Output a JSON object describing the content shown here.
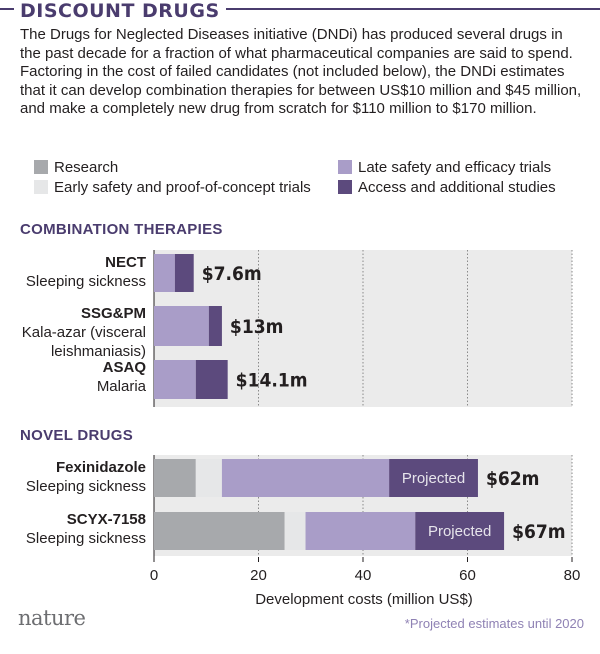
{
  "header": {
    "title": "DISCOUNT DRUGS",
    "intro": "The Drugs for Neglected Diseases initiative (DNDi) has produced several drugs in the past decade for a fraction of what pharmaceutical companies are said to spend. Factoring in the cost of failed candidates (not included below), the DNDi estimates that it can develop combination therapies for between US$10 million and $45 million, and make a completely new drug from scratch for $110 million to $170 million."
  },
  "legend": [
    {
      "label": "Research",
      "color": "#a7a9ac"
    },
    {
      "label": "Early safety and proof-of-concept trials",
      "color": "#e6e7e8"
    },
    {
      "label": "Late safety and efficacy trials",
      "color": "#a99dc8"
    },
    {
      "label": "Access and additional studies",
      "color": "#5c4a7d"
    }
  ],
  "chart_data": {
    "type": "bar",
    "orientation": "horizontal",
    "stacked": true,
    "xlabel": "Development costs (million US$)",
    "xlim": [
      0,
      80
    ],
    "xticks": [
      0,
      20,
      40,
      60,
      80
    ],
    "grid": true,
    "series_names": [
      "Research",
      "Early safety and proof-of-concept trials",
      "Late safety and efficacy trials",
      "Access and additional studies"
    ],
    "sections": [
      {
        "title": "COMBINATION THERAPIES",
        "bars": [
          {
            "name": "NECT",
            "sub": "Sleeping sickness",
            "values": [
              0,
              0,
              4.0,
              3.6
            ],
            "total_label": "$7.6m"
          },
          {
            "name": "SSG&PM",
            "sub": "Kala-azar (visceral leishmaniasis)",
            "values": [
              0,
              0,
              10.5,
              2.5
            ],
            "total_label": "$13m"
          },
          {
            "name": "ASAQ",
            "sub": "Malaria",
            "values": [
              0,
              0,
              8.0,
              6.1
            ],
            "total_label": "$14.1m"
          }
        ]
      },
      {
        "title": "NOVEL DRUGS",
        "bars": [
          {
            "name": "Fexinidazole",
            "sub": "Sleeping sickness",
            "values": [
              8,
              5,
              32,
              17
            ],
            "projected_series": 3,
            "projected_label": "Projected",
            "total_label": "$62m"
          },
          {
            "name": "SCYX-7158",
            "sub": "Sleeping sickness",
            "values": [
              25,
              4,
              21,
              17
            ],
            "projected_series": 3,
            "projected_label": "Projected",
            "total_label": "$67m"
          }
        ]
      }
    ]
  },
  "footer": {
    "logo": "nature",
    "footnote": "*Projected estimates until 2020"
  }
}
